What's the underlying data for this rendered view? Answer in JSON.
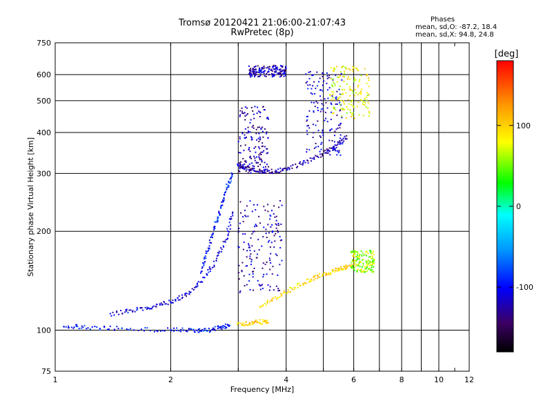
{
  "figure": {
    "title_line1": "Tromsø 20120421 21:06:00-21:07:43",
    "title_line2": "RwPretec (8p)"
  },
  "phase_stats": {
    "heading": "Phases",
    "line1": "mean, sd,O: -87.2, 18.4",
    "line2": "mean, sd,X:  94.8, 24.8"
  },
  "colorbar": {
    "label": "[deg]",
    "ticks": [
      "100",
      "0",
      "-100"
    ],
    "tick_values": [
      100,
      0,
      -100
    ],
    "range": [
      -180,
      180
    ],
    "colors": [
      "#000000",
      "#3c0064",
      "#0000ff",
      "#0096ff",
      "#00ffff",
      "#00ff00",
      "#ffff00",
      "#ff9600",
      "#ff0000"
    ]
  },
  "chart_data": {
    "type": "scatter",
    "title": "Tromsø 20120421 21:06:00-21:07:43",
    "subtitle": "RwPretec (8p)",
    "xlabel": "Frequency [MHz]",
    "ylabel": "Stationary phase Virtual Height [km]",
    "xscale": "log",
    "yscale": "log",
    "xlim": [
      1,
      12
    ],
    "ylim": [
      75,
      750
    ],
    "x_ticks": [
      1,
      2,
      4,
      6,
      8,
      10,
      12
    ],
    "x_grid": [
      2,
      3,
      4,
      5,
      6,
      7,
      8,
      9,
      10
    ],
    "y_ticks": [
      75,
      100,
      200,
      300,
      400,
      500,
      600,
      750
    ],
    "y_grid": [
      100,
      200,
      300,
      400,
      500,
      600
    ],
    "grid": true,
    "color_by": "phase [deg]",
    "traces": [
      {
        "x": [
          1.05,
          1.2,
          1.5,
          2.0,
          2.3,
          2.5,
          2.7,
          2.85
        ],
        "y": [
          103,
          102,
          101,
          100,
          100,
          100,
          102,
          104
        ],
        "phase": -95
      },
      {
        "x": [
          1.4,
          1.6,
          1.8,
          2.0,
          2.2,
          2.4,
          2.6,
          2.8,
          2.9
        ],
        "y": [
          112,
          115,
          118,
          122,
          128,
          140,
          160,
          190,
          230
        ],
        "phase": -110
      },
      {
        "x": [
          2.4,
          2.5,
          2.6,
          2.7,
          2.8,
          2.9
        ],
        "y": [
          150,
          175,
          205,
          235,
          270,
          300
        ],
        "phase": -95
      },
      {
        "x": [
          3.0,
          3.1,
          3.3,
          3.5,
          3.8,
          4.1,
          4.5,
          5.0,
          5.4,
          5.8
        ],
        "y": [
          320,
          313,
          306,
          304,
          305,
          312,
          325,
          345,
          365,
          390
        ],
        "phase": -125
      },
      {
        "x": [
          3.4,
          3.8,
          4.2,
          4.6,
          5.0,
          5.4,
          5.7,
          6.0
        ],
        "y": [
          118,
          126,
          135,
          142,
          148,
          152,
          155,
          158
        ],
        "phase": 95
      },
      {
        "x": [
          3.0,
          3.2,
          3.4,
          3.6
        ],
        "y": [
          104,
          105,
          106,
          106
        ],
        "phase": 100
      }
    ],
    "regions": [
      {
        "x_range": [
          3.0,
          3.6
        ],
        "y_range": [
          300,
          480
        ],
        "phase": -125
      },
      {
        "x_range": [
          3.0,
          3.9
        ],
        "y_range": [
          130,
          250
        ],
        "phase": -120
      },
      {
        "x_range": [
          4.5,
          5.6
        ],
        "y_range": [
          340,
          620
        ],
        "phase": -115
      },
      {
        "x_range": [
          3.2,
          4.0
        ],
        "y_range": [
          590,
          640
        ],
        "phase": -120
      },
      {
        "x_range": [
          5.2,
          6.6
        ],
        "y_range": [
          440,
          640
        ],
        "phase": 80
      },
      {
        "x_range": [
          5.9,
          6.8
        ],
        "y_range": [
          150,
          175
        ],
        "phase": 60
      }
    ]
  }
}
